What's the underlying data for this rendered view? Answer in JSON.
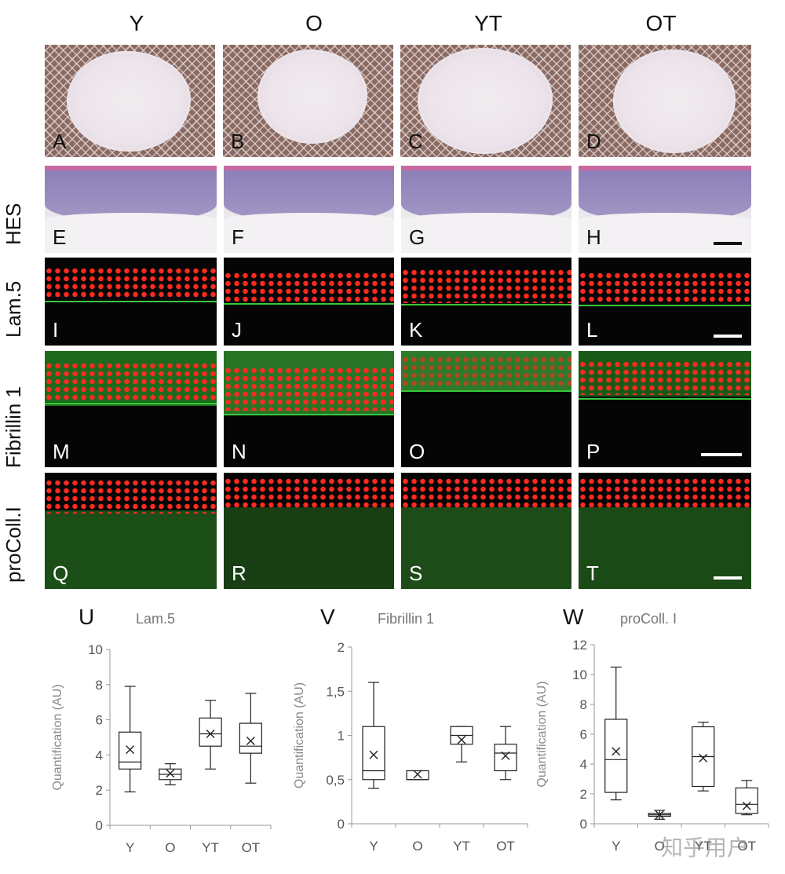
{
  "columns": [
    "Y",
    "O",
    "YT",
    "OT"
  ],
  "rows": [
    "HES",
    "Lam.5",
    "Fibrillin 1",
    "proColl.I"
  ],
  "panel_letters": [
    "A",
    "B",
    "C",
    "D",
    "E",
    "F",
    "G",
    "H",
    "I",
    "J",
    "K",
    "L",
    "M",
    "N",
    "O",
    "P",
    "Q",
    "R",
    "S",
    "T"
  ],
  "watermark": "知乎用户",
  "chart_data": [
    {
      "type": "box",
      "panel_letter": "U",
      "title": "Lam.5",
      "ylabel": "Quantification (AU)",
      "categories": [
        "Y",
        "O",
        "YT",
        "OT"
      ],
      "ylim": [
        0,
        10
      ],
      "yticks": [
        0,
        2,
        4,
        6,
        8,
        10
      ],
      "ytick_labels": [
        "0",
        "2",
        "4",
        "6",
        "8",
        "10"
      ],
      "boxes": [
        {
          "min": 1.9,
          "q1": 3.2,
          "median": 3.6,
          "q3": 5.3,
          "max": 7.9,
          "mean": 4.3
        },
        {
          "min": 2.3,
          "q1": 2.6,
          "median": 2.9,
          "q3": 3.2,
          "max": 3.5,
          "mean": 2.95
        },
        {
          "min": 3.2,
          "q1": 4.5,
          "median": 5.2,
          "q3": 6.1,
          "max": 7.1,
          "mean": 5.2
        },
        {
          "min": 2.4,
          "q1": 4.1,
          "median": 4.5,
          "q3": 5.8,
          "max": 7.5,
          "mean": 4.8
        }
      ]
    },
    {
      "type": "box",
      "panel_letter": "V",
      "title": "Fibrillin 1",
      "ylabel": "Quantification (AU)",
      "categories": [
        "Y",
        "O",
        "YT",
        "OT"
      ],
      "ylim": [
        0,
        2
      ],
      "yticks": [
        0,
        0.5,
        1,
        1.5,
        2
      ],
      "ytick_labels": [
        "0",
        "0,5",
        "1",
        "1,5",
        "2"
      ],
      "boxes": [
        {
          "min": 0.4,
          "q1": 0.5,
          "median": 0.6,
          "q3": 1.1,
          "max": 1.6,
          "mean": 0.78
        },
        {
          "min": 0.5,
          "q1": 0.5,
          "median": 0.5,
          "q3": 0.6,
          "max": 0.6,
          "mean": 0.56
        },
        {
          "min": 0.7,
          "q1": 0.9,
          "median": 1.0,
          "q3": 1.1,
          "max": 1.1,
          "mean": 0.95
        },
        {
          "min": 0.5,
          "q1": 0.6,
          "median": 0.8,
          "q3": 0.9,
          "max": 1.1,
          "mean": 0.77
        }
      ]
    },
    {
      "type": "box",
      "panel_letter": "W",
      "title": "proColl. I",
      "ylabel": "Quantification (AU)",
      "categories": [
        "Y",
        "O",
        "YT",
        "OT"
      ],
      "ylim": [
        0,
        12
      ],
      "yticks": [
        0,
        2,
        4,
        6,
        8,
        10,
        12
      ],
      "ytick_labels": [
        "0",
        "2",
        "4",
        "6",
        "8",
        "10",
        "12"
      ],
      "boxes": [
        {
          "min": 1.6,
          "q1": 2.1,
          "median": 4.3,
          "q3": 7.0,
          "max": 10.5,
          "mean": 4.85
        },
        {
          "min": 0.3,
          "q1": 0.5,
          "median": 0.6,
          "q3": 0.7,
          "max": 0.9,
          "mean": 0.6
        },
        {
          "min": 2.2,
          "q1": 2.5,
          "median": 4.5,
          "q3": 6.5,
          "max": 6.8,
          "mean": 4.4
        },
        {
          "min": 0.6,
          "q1": 0.7,
          "median": 1.3,
          "q3": 2.4,
          "max": 2.9,
          "mean": 1.2
        }
      ]
    }
  ]
}
